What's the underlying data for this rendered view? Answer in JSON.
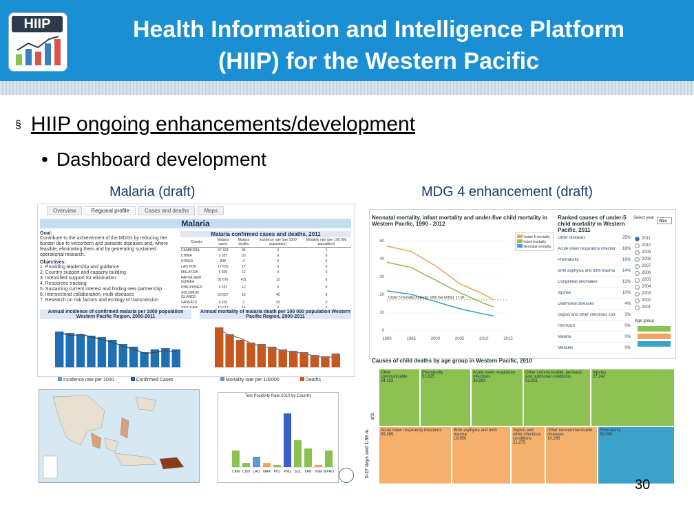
{
  "header": {
    "title_line1": "Health Information and Intelligence Platform",
    "title_line2": "(HIIP)  for the Western Pacific",
    "logo_text": "HIIP",
    "bg_color": "#1a8fd3"
  },
  "bullets": {
    "level1": "HIIP ongoing enhancements/development",
    "level1_marker": "§",
    "level2": "Dashboard development",
    "level2_marker": "•"
  },
  "captions": {
    "malaria": "Malaria (draft)",
    "mdg4": "MDG 4 enhancement (draft)"
  },
  "malaria_dashboard": {
    "tabs": [
      "Overview",
      "Regional profile",
      "Cases and deaths",
      "Maps"
    ],
    "title": "Malaria",
    "goal_label": "Goal:",
    "goal_text": "Contribute to the achievement of the MDGs by reducing the burden due to vectorborn and parasitic diseases and, where feasible, eliminating them and by generating sustained operational research.",
    "objectives_label": "Objectives:",
    "objectives": [
      "1. Providing leadership and guidance",
      "2. Country support and capacity building",
      "3. Intensified support for elimination",
      "4. Resources tracking",
      "5. Sustaining current interest and finding new partnership",
      "6. Intersectoral collaboration, multi-diseases",
      "7. Research on risk factors and ecology of transmission"
    ],
    "table_title": "Malaria confirmed cases and deaths, 2011",
    "table_headers": [
      "Country",
      "Malaria cases",
      "Malaria deaths",
      "Incidence rate (per 1000 population)",
      "Mortality rate (per 100 000 population)"
    ],
    "table_rows": [
      [
        "CAMBODIA",
        "57 423",
        "94",
        "4",
        "1"
      ],
      [
        "CHINA",
        "3 367",
        "33",
        "0",
        "0"
      ],
      [
        "KOREA",
        "838",
        "2",
        "0",
        "0"
      ],
      [
        "LAO PDR",
        "17 835",
        "17",
        "3",
        "0"
      ],
      [
        "MALAYSIA",
        "5 306",
        "12",
        "0",
        "0"
      ],
      [
        "PAPUA NEW GUINEA",
        "81 676",
        "431",
        "12",
        "6"
      ],
      [
        "PHILIPPINES",
        "9 552",
        "12",
        "0",
        "0"
      ],
      [
        "SOLOMON ISLANDS",
        "23 557",
        "19",
        "40",
        "3"
      ],
      [
        "VANUATU",
        "4 203",
        "1",
        "20",
        "0"
      ],
      [
        "VIET NAM",
        "16 612",
        "14",
        "0",
        "0"
      ]
    ],
    "chart1_title": "Annual incidence of confirmed malaria per 1000 population Western Pacific Region, 2000-2011",
    "chart1_legend": [
      "Incidence rate per 1000",
      "Confirmed Cases"
    ],
    "chart2_title": "Annual mortality of malaria death per 100 000 population Western Pacific Region, 2000-2011",
    "chart2_legend": [
      "Mortality rate per 100000",
      "Deaths"
    ],
    "chart3_title": "Test Positivity Rate 2010 by Country",
    "chart3_categories": [
      "CAM",
      "CHN",
      "LAO",
      "MAA",
      "PHL",
      "PNG",
      "SOL",
      "VAN",
      "VNM",
      "WPRO"
    ]
  },
  "mdg4_dashboard": {
    "line_title": "Neonatal mortality, infant mortality and under-five child mortality in Western Pacific, 1990 - 2012",
    "line_legend": [
      "Under-5 mortality",
      "Infant mortality",
      "Neonatal mortality"
    ],
    "line_annotation": "Under 5 mortality (rate per 1000 live births): 17.00",
    "y_ticks": [
      "50",
      "40",
      "30",
      "20",
      "10",
      "0"
    ],
    "x_ticks": [
      "1990",
      "1995",
      "2000",
      "2005",
      "2010",
      "2015"
    ],
    "ranked_title": "Ranked causes of under-5 child mortality in Western Pacific, 2011",
    "ranked_causes": [
      {
        "label": "Other diseases",
        "pct": "25%"
      },
      {
        "label": "Acute lower respiratory infections",
        "pct": "18%"
      },
      {
        "label": "Prematurity",
        "pct": "16%"
      },
      {
        "label": "Birth asphyxia and birth trauma",
        "pct": "14%"
      },
      {
        "label": "Congenital anomalies",
        "pct": "12%"
      },
      {
        "label": "Injuries",
        "pct": "10%"
      },
      {
        "label": "Diarrhoeal diseases",
        "pct": "4%"
      },
      {
        "label": "Sepsis and other infectious conditions of the newborn",
        "pct": "3%"
      },
      {
        "label": "HIV/AIDS",
        "pct": "0%"
      },
      {
        "label": "Malaria",
        "pct": "0%"
      },
      {
        "label": "Measles",
        "pct": "0%"
      }
    ],
    "select_year_label": "Select year",
    "select_region": "Wes",
    "years": [
      "2011",
      "2010",
      "2009",
      "2008",
      "2007",
      "2006",
      "2005",
      "2004",
      "2003",
      "2002",
      "2001"
    ],
    "age_group_label": "Age group",
    "treemap_title": "Causes of child deaths by age group in Western Pacific, 2010",
    "treemap_axis_top": "1-4 years",
    "treemap_axis_bottom": "0-27 days and 1-59 m.",
    "treemap_cells_top": [
      {
        "label": "Other communicable",
        "value": "24,152"
      },
      {
        "label": "Prematurity",
        "value": "52,625"
      },
      {
        "label": "Acute lower respiratory infections",
        "value": "36,583"
      },
      {
        "label": "Other communicable, perinatal and nutritional conditions",
        "value": "52,651"
      },
      {
        "label": "Injuries",
        "value": "27,242"
      }
    ],
    "treemap_cells_bottom": [
      {
        "label": "Acute lower respiratory infections",
        "value": "55,285"
      },
      {
        "label": "Birth asphyxia and birth trauma",
        "value": "19,950"
      },
      {
        "label": "Sepsis and other infectious conditions",
        "value": "21,275"
      },
      {
        "label": "Other noncommunicable diseases",
        "value": "10,285"
      },
      {
        "label": "Prematurity",
        "value": "52,000"
      }
    ],
    "colors": {
      "under5": "#f5a35c",
      "infant": "#8cc152",
      "neonatal": "#3ba3c9"
    }
  },
  "slide_number": "30"
}
